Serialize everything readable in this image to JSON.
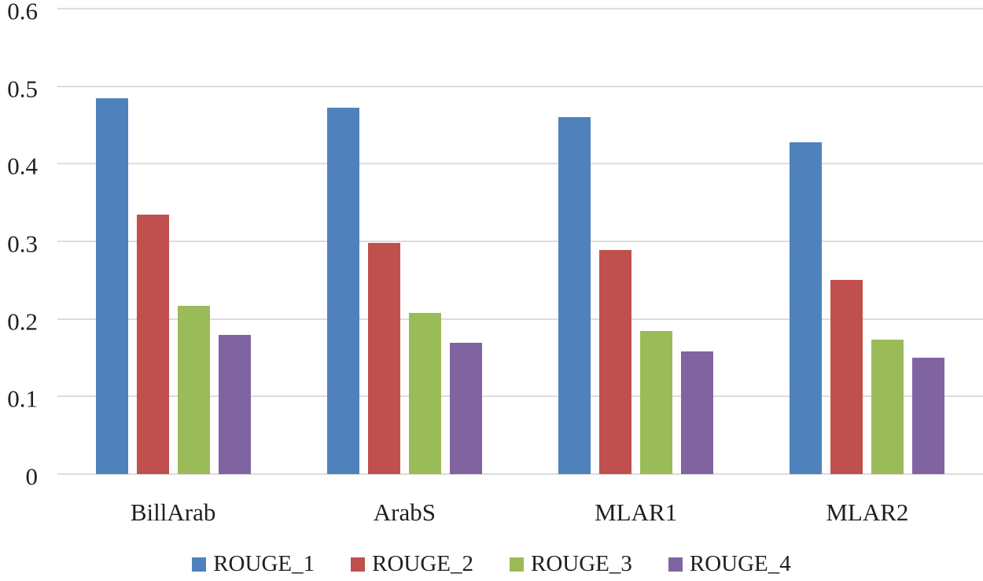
{
  "figure": {
    "background_color": "#ffffff",
    "text_color": "#1f1f1f",
    "gridline_color": "#dcdcdc"
  },
  "chart_data": {
    "type": "bar",
    "title": "",
    "xlabel": "",
    "ylabel": "",
    "categories": [
      "BillArab",
      "ArabS",
      "MLAR1",
      "MLAR2"
    ],
    "series": [
      {
        "name": "ROUGE_1",
        "color": "#4F81BD",
        "values": [
          0.484,
          0.472,
          0.46,
          0.428
        ]
      },
      {
        "name": "ROUGE_2",
        "color": "#C0504D",
        "values": [
          0.334,
          0.298,
          0.289,
          0.25
        ]
      },
      {
        "name": "ROUGE_3",
        "color": "#9BBB59",
        "values": [
          0.217,
          0.208,
          0.184,
          0.173
        ]
      },
      {
        "name": "ROUGE_4",
        "color": "#8064A2",
        "values": [
          0.179,
          0.169,
          0.158,
          0.15
        ]
      }
    ],
    "ylim": [
      0,
      0.6
    ],
    "ytick_step": 0.1,
    "ytick_labels": [
      "0",
      "0.1",
      "0.2",
      "0.3",
      "0.4",
      "0.5",
      "0.6"
    ],
    "grid": true,
    "legend_position": "bottom",
    "legend_entries": [
      "ROUGE_1",
      "ROUGE_2",
      "ROUGE_3",
      "ROUGE_4"
    ]
  }
}
